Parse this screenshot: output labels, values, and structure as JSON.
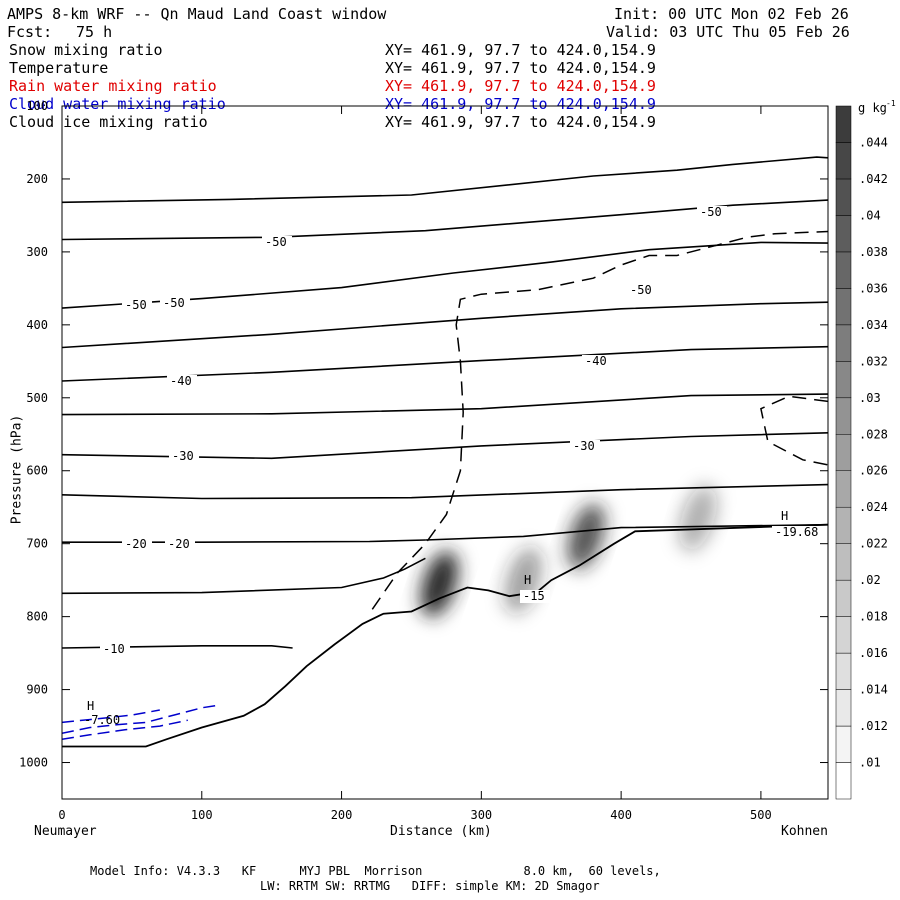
{
  "header": {
    "title": "AMPS 8-km WRF -- Qn Maud Land Coast window",
    "init": "Init: 00 UTC Mon 02 Feb 26",
    "fcst_label": "Fcst:",
    "fcst_value": "75 h",
    "valid": "Valid: 03 UTC Thu 05 Feb 26"
  },
  "fields": [
    {
      "name": "Snow mixing ratio",
      "xy": "XY= 461.9, 97.7 to 424.0,154.9",
      "color": "#000000"
    },
    {
      "name": "Temperature",
      "xy": "XY= 461.9, 97.7 to 424.0,154.9",
      "color": "#000000"
    },
    {
      "name": "Rain water mixing ratio",
      "xy": "XY= 461.9, 97.7 to 424.0,154.9",
      "color": "#e00000"
    },
    {
      "name": "Cloud water mixing ratio",
      "xy": "XY= 461.9, 97.7 to 424.0,154.9",
      "color": "#0000cc"
    },
    {
      "name": "Cloud ice mixing ratio",
      "xy": "XY= 461.9, 97.7 to 424.0,154.9",
      "color": "#000000"
    }
  ],
  "axes": {
    "ylabel": "Pressure (hPa)",
    "xlabel": "Distance (km)",
    "left_station": "Neumayer",
    "right_station": "Kohnen"
  },
  "footer": {
    "line1": "Model Info: V4.3.3   KF      MYJ PBL  Morrison              8.0 km,  60 levels,",
    "line2": "LW: RRTM SW: RRTMG   DIFF: simple KM: 2D Smagor"
  },
  "chart_data": {
    "type": "cross-section",
    "title": "AMPS 8-km WRF -- Qn Maud Land Coast window",
    "xlabel": "Distance (km)",
    "ylabel": "Pressure (hPa)",
    "xlim": [
      0,
      548
    ],
    "ylim": [
      1050,
      100
    ],
    "x_ticks": [
      0,
      100,
      200,
      300,
      400,
      500
    ],
    "y_ticks": [
      100,
      200,
      300,
      400,
      500,
      600,
      700,
      800,
      900,
      1000
    ],
    "colorbar": {
      "unit": "g kg",
      "unit_exp": "-1",
      "ticks": [
        ".01",
        ".012",
        ".014",
        ".016",
        ".018",
        ".02",
        ".022",
        ".024",
        ".026",
        ".028",
        ".03",
        ".032",
        ".034",
        ".036",
        ".038",
        ".04",
        ".042",
        ".044"
      ],
      "range": [
        0.009,
        0.046
      ]
    },
    "temperature_contours": [
      {
        "level": null,
        "points": [
          [
            0,
            232
          ],
          [
            120,
            228
          ],
          [
            250,
            222
          ],
          [
            380,
            196
          ],
          [
            440,
            188
          ],
          [
            480,
            180
          ],
          [
            540,
            170
          ],
          [
            548,
            171
          ]
        ]
      },
      {
        "level": null,
        "points": [
          [
            0,
            283
          ],
          [
            150,
            280
          ],
          [
            260,
            271
          ],
          [
            400,
            249
          ],
          [
            480,
            236
          ],
          [
            548,
            229
          ]
        ]
      },
      {
        "level": null,
        "points": [
          [
            0,
            377
          ],
          [
            100,
            364
          ],
          [
            200,
            349
          ],
          [
            280,
            329
          ],
          [
            350,
            314
          ],
          [
            420,
            297
          ],
          [
            500,
            287
          ],
          [
            548,
            288
          ]
        ]
      },
      {
        "level": null,
        "points": [
          [
            0,
            431
          ],
          [
            150,
            413
          ],
          [
            300,
            391
          ],
          [
            400,
            378
          ],
          [
            500,
            371
          ],
          [
            548,
            369
          ]
        ]
      },
      {
        "level": null,
        "points": [
          [
            0,
            477
          ],
          [
            150,
            465
          ],
          [
            300,
            449
          ],
          [
            450,
            434
          ],
          [
            548,
            430
          ]
        ]
      },
      {
        "level": null,
        "points": [
          [
            0,
            523
          ],
          [
            150,
            522
          ],
          [
            300,
            515
          ],
          [
            450,
            497
          ],
          [
            548,
            495
          ]
        ]
      },
      {
        "level": null,
        "points": [
          [
            0,
            578
          ],
          [
            150,
            583
          ],
          [
            300,
            566
          ],
          [
            450,
            553
          ],
          [
            548,
            548
          ]
        ]
      },
      {
        "level": null,
        "points": [
          [
            0,
            633
          ],
          [
            100,
            638
          ],
          [
            250,
            637
          ],
          [
            400,
            626
          ],
          [
            548,
            619
          ]
        ]
      },
      {
        "level": null,
        "points": [
          [
            0,
            698
          ],
          [
            100,
            698
          ],
          [
            220,
            697
          ],
          [
            260,
            695
          ]
        ]
      },
      {
        "level": null,
        "points": [
          [
            260,
            695
          ],
          [
            330,
            690
          ],
          [
            400,
            678
          ],
          [
            548,
            674
          ]
        ]
      },
      {
        "level": null,
        "points": [
          [
            0,
            768
          ],
          [
            100,
            767
          ],
          [
            200,
            760
          ],
          [
            230,
            747
          ],
          [
            245,
            735
          ],
          [
            260,
            720
          ]
        ]
      },
      {
        "level": null,
        "points": [
          [
            0,
            843
          ],
          [
            100,
            840
          ],
          [
            150,
            840
          ],
          [
            165,
            843
          ]
        ]
      }
    ],
    "contour_labels": [
      {
        "text": "-50",
        "x": 155,
        "y": 296
      },
      {
        "text": "-50",
        "x": 55,
        "y": 305
      },
      {
        "text": "-50",
        "x": 83,
        "y": 302
      },
      {
        "text": "-50",
        "x": 466,
        "y": 270
      },
      {
        "text": "-50",
        "x": 415,
        "y": 340
      },
      {
        "text": "-40",
        "x": 88,
        "y": 381
      },
      {
        "text": "-40",
        "x": 380,
        "y": 361
      },
      {
        "text": "-30",
        "x": 87,
        "y": 456
      },
      {
        "text": "-30",
        "x": 372,
        "y": 446
      },
      {
        "text": "-20",
        "x": 54,
        "y": 543
      },
      {
        "text": "-20",
        "x": 85,
        "y": 543
      },
      {
        "text": "-10",
        "x": 38,
        "y": 649
      },
      {
        "text": "-15",
        "x": 335,
        "y": 596
      },
      {
        "text": "-19.68",
        "x": 517,
        "y": 531
      }
    ],
    "extrema_labels": [
      {
        "text": "H",
        "x": 335,
        "y": 580
      },
      {
        "text": "H",
        "x": 515,
        "y": 515
      },
      {
        "text": "H",
        "x": 20,
        "y": 706
      },
      {
        "text": "-7.60",
        "x": 25,
        "y": 721
      }
    ],
    "terrain_profile": [
      [
        0,
        978
      ],
      [
        60,
        978
      ],
      [
        75,
        968
      ],
      [
        100,
        952
      ],
      [
        130,
        936
      ],
      [
        145,
        920
      ],
      [
        160,
        895
      ],
      [
        175,
        868
      ],
      [
        195,
        838
      ],
      [
        215,
        810
      ],
      [
        230,
        796
      ],
      [
        250,
        793
      ],
      [
        270,
        775
      ],
      [
        290,
        760
      ],
      [
        305,
        764
      ],
      [
        320,
        772
      ],
      [
        340,
        766
      ],
      [
        350,
        750
      ],
      [
        370,
        730
      ],
      [
        395,
        700
      ],
      [
        410,
        683
      ],
      [
        548,
        674
      ]
    ],
    "snow_blobs": [
      {
        "x_km": 270,
        "p_hpa": 755,
        "intensity": 0.045
      },
      {
        "x_km": 330,
        "p_hpa": 750,
        "intensity": 0.02
      },
      {
        "x_km": 375,
        "p_hpa": 690,
        "intensity": 0.036
      },
      {
        "x_km": 455,
        "p_hpa": 665,
        "intensity": 0.016
      }
    ]
  }
}
